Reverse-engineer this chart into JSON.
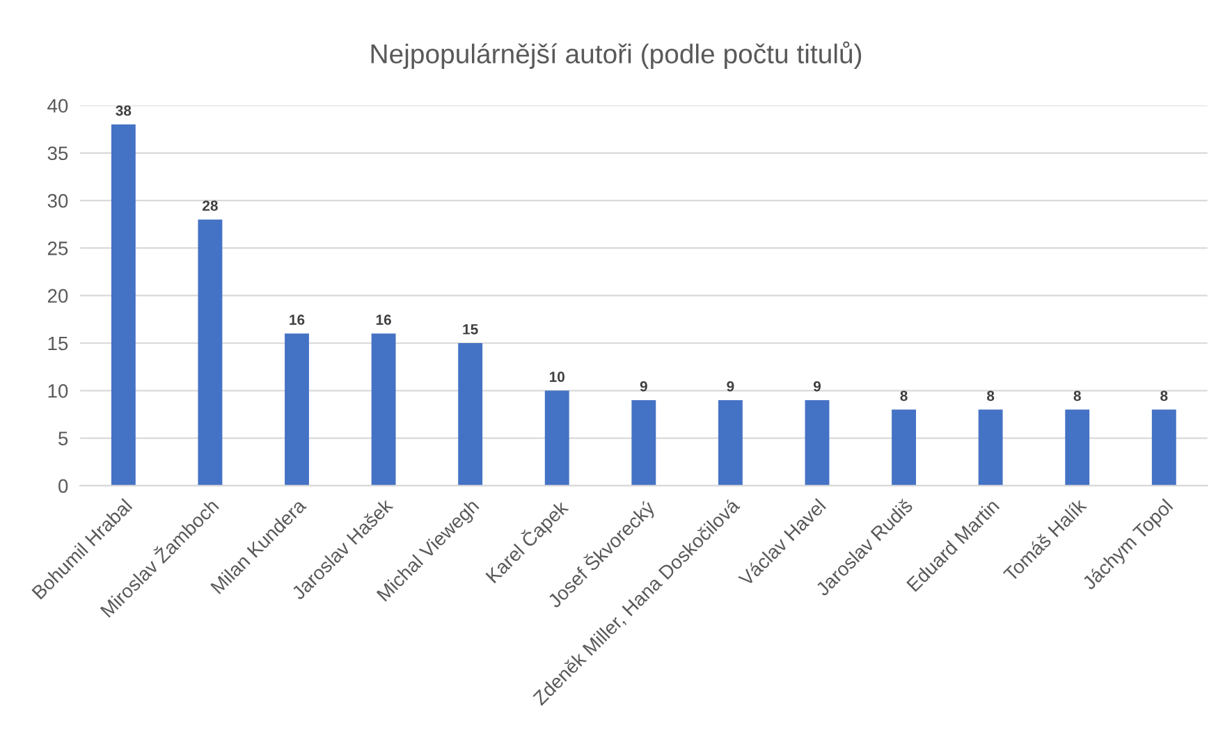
{
  "chart_data": {
    "type": "bar",
    "title": "Nejpopulárnější autoři (podle počtu titulů)",
    "categories": [
      "Bohumil Hrabal",
      "Miroslav Žamboch",
      "Milan Kundera",
      "Jaroslav Hašek",
      "Michal Viewegh",
      "Karel Čapek",
      "Josef Škvorecký",
      "Zdeněk Miller, Hana Doskočilová",
      "Václav Havel",
      "Jaroslav Rudiš",
      "Eduard Martin",
      "Tomáš Halík",
      "Jáchym Topol"
    ],
    "values": [
      38,
      28,
      16,
      16,
      15,
      10,
      9,
      9,
      9,
      8,
      8,
      8,
      8
    ],
    "color": "#4472c4",
    "ylim": [
      0,
      40
    ],
    "yticks": [
      0,
      5,
      10,
      15,
      20,
      25,
      30,
      35,
      40
    ],
    "grid": "y",
    "data_labels": true
  }
}
